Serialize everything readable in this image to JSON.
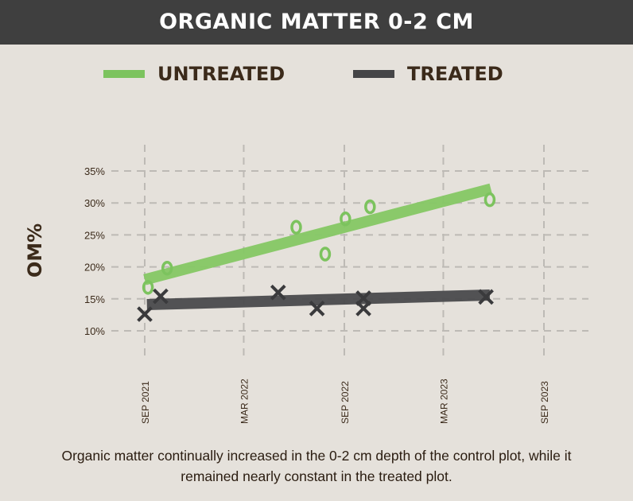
{
  "title": "ORGANIC MATTER 0-2 CM",
  "legend": [
    {
      "label": "UNTREATED",
      "color": "#7cc35e"
    },
    {
      "label": "TREATED",
      "color": "#454547"
    }
  ],
  "caption": "Organic matter continually increased in the 0-2 cm depth of the control plot, while it remained nearly constant in the treated plot.",
  "colors": {
    "background": "#e5e1db",
    "header": "#3f3f3f",
    "grid": "#bdbab5",
    "text": "#3b2a1a",
    "untreated_marker": "#7cc35e",
    "treated_marker": "#3a3a3c"
  },
  "chart_data": {
    "type": "scatter",
    "ylabel": "OM%",
    "ylim": [
      10,
      35
    ],
    "yticks": [
      10,
      15,
      20,
      25,
      30,
      35
    ],
    "ytick_labels": [
      "10%",
      "15%",
      "20%",
      "25%",
      "30%",
      "35%"
    ],
    "xlim": [
      "2021-09",
      "2023-09"
    ],
    "xticks": [
      "2021-09",
      "2022-03",
      "2022-09",
      "2023-03",
      "2023-09"
    ],
    "xtick_labels": [
      "SEP 2021",
      "MAR 2022",
      "SEP 2022",
      "MAR 2023",
      "SEP 2023"
    ],
    "grid": true,
    "legend_position": "top",
    "series": [
      {
        "name": "UNTREATED",
        "marker": "O",
        "color": "#7cc35e",
        "points": [
          {
            "x": "2021-09-07",
            "y": 16.8
          },
          {
            "x": "2021-10-12",
            "y": 19.8
          },
          {
            "x": "2022-06-05",
            "y": 26.2
          },
          {
            "x": "2022-07-28",
            "y": 22.0
          },
          {
            "x": "2022-09-03",
            "y": 27.5
          },
          {
            "x": "2022-10-18",
            "y": 29.4
          },
          {
            "x": "2023-05-25",
            "y": 30.5
          }
        ],
        "trend": [
          {
            "x": "2021-09-01",
            "y": 18.0
          },
          {
            "x": "2023-05-27",
            "y": 32.2
          }
        ]
      },
      {
        "name": "TREATED",
        "marker": "X",
        "color": "#3a3a3c",
        "points": [
          {
            "x": "2021-09-01",
            "y": 12.6
          },
          {
            "x": "2021-09-30",
            "y": 15.4
          },
          {
            "x": "2022-05-03",
            "y": 16.0
          },
          {
            "x": "2022-07-13",
            "y": 13.5
          },
          {
            "x": "2022-10-06",
            "y": 13.5
          },
          {
            "x": "2022-10-06",
            "y": 15.1
          },
          {
            "x": "2023-05-18",
            "y": 15.3
          }
        ],
        "trend": [
          {
            "x": "2021-09-05",
            "y": 14.1
          },
          {
            "x": "2023-05-25",
            "y": 15.6
          }
        ]
      }
    ]
  }
}
